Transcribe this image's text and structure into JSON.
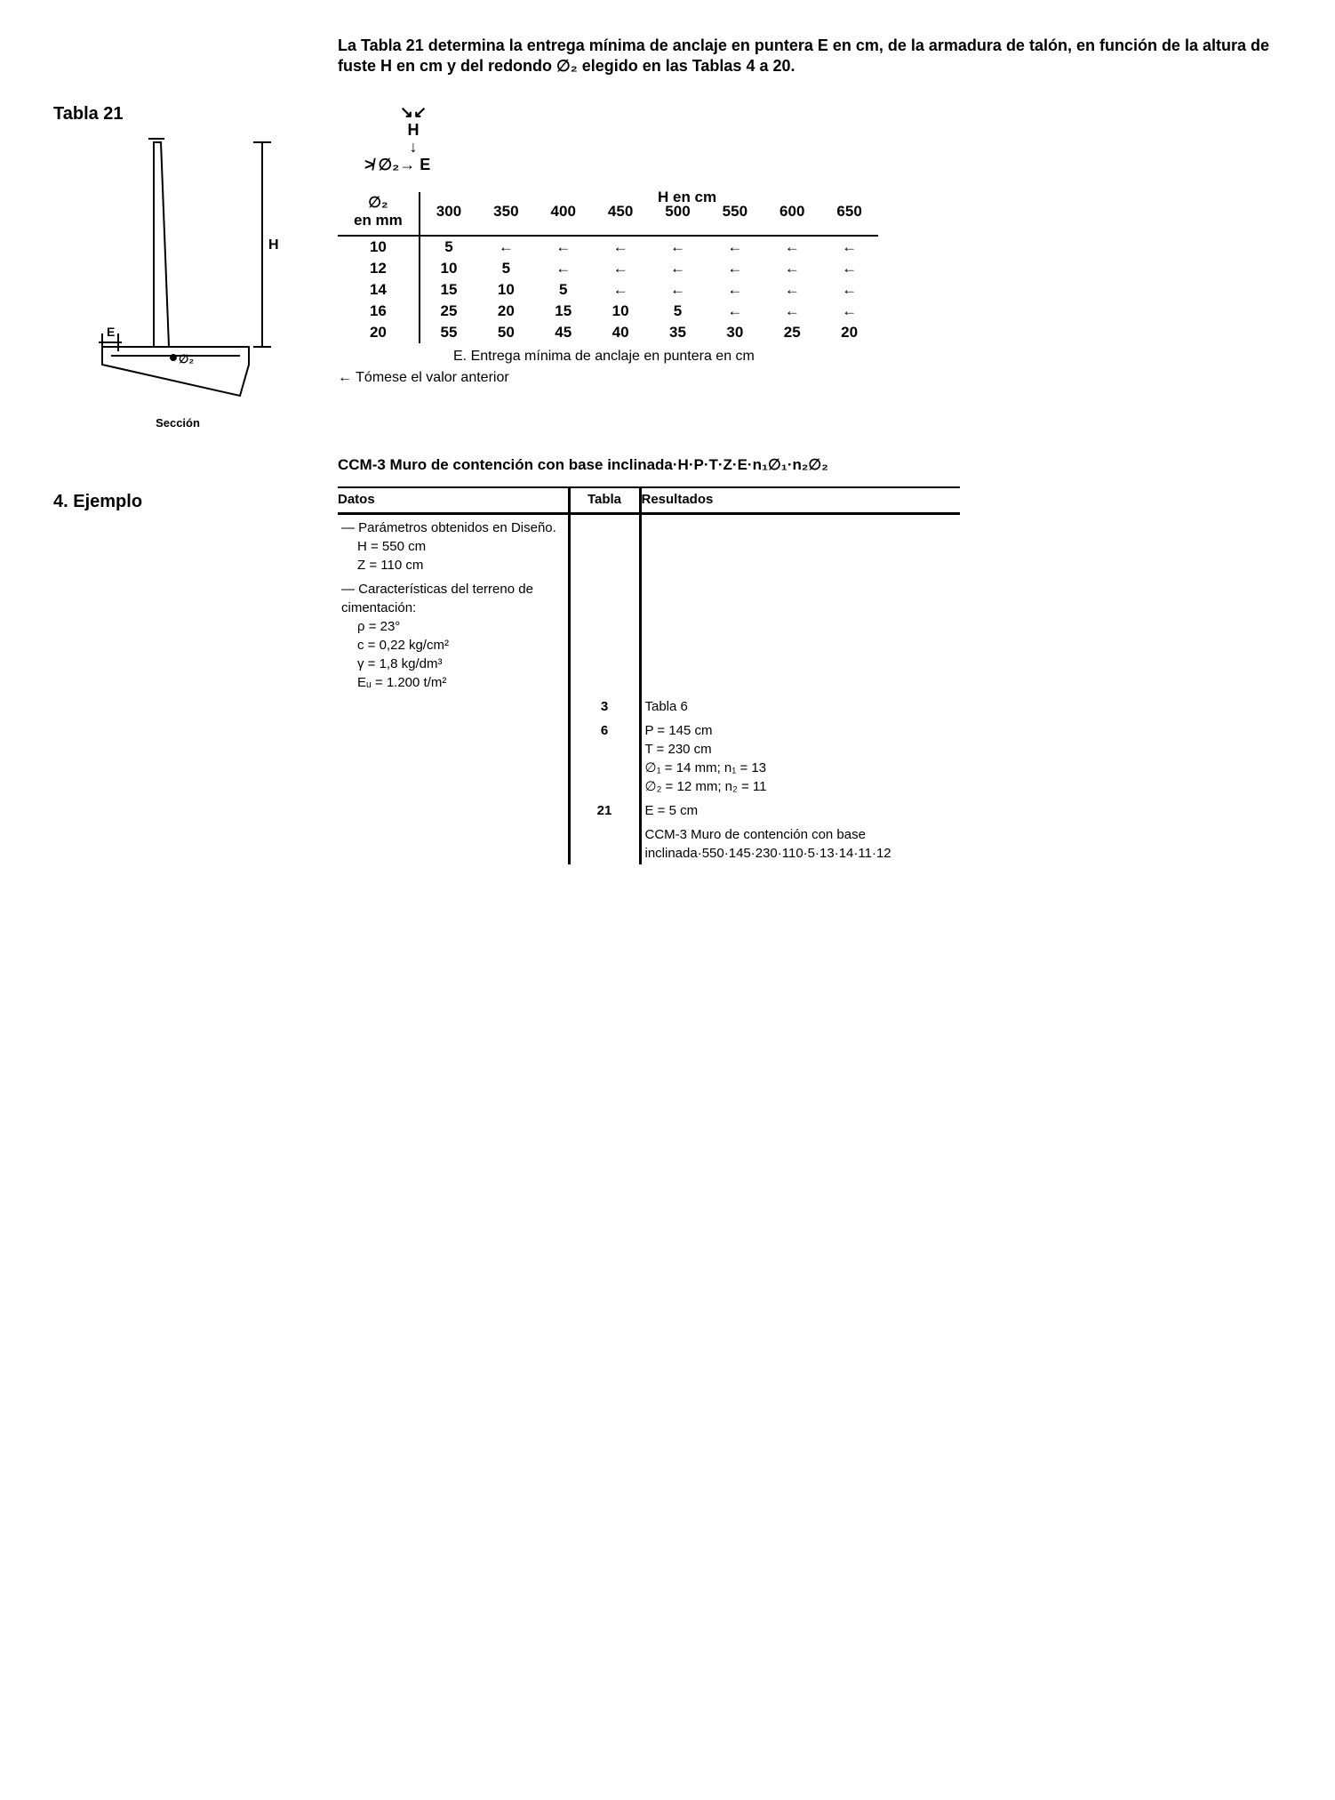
{
  "intro": "La Tabla 21 determina la entrega mínima de anclaje en puntera E en cm, de la armadura de talón, en función de la altura de fuste H en cm y del redondo ∅₂ elegido en las Tablas 4 a 20.",
  "tabla21_label": "Tabla 21",
  "seccion_label": "Sección",
  "h_diagram": {
    "l1": "↘↙",
    "l2": "H",
    "l3": "↓",
    "l4": "≯ ∅₂→ E"
  },
  "table21": {
    "super_header": "H en cm",
    "corner_top": "∅₂",
    "corner_bottom": "en mm",
    "cols": [
      "300",
      "350",
      "400",
      "450",
      "500",
      "550",
      "600",
      "650"
    ],
    "rows": [
      {
        "d": "10",
        "v": [
          "5",
          "←",
          "←",
          "←",
          "←",
          "←",
          "←",
          "←"
        ]
      },
      {
        "d": "12",
        "v": [
          "10",
          "5",
          "←",
          "←",
          "←",
          "←",
          "←",
          "←"
        ]
      },
      {
        "d": "14",
        "v": [
          "15",
          "10",
          "5",
          "←",
          "←",
          "←",
          "←",
          "←"
        ]
      },
      {
        "d": "16",
        "v": [
          "25",
          "20",
          "15",
          "10",
          "5",
          "←",
          "←",
          "←"
        ]
      },
      {
        "d": "20",
        "v": [
          "55",
          "50",
          "45",
          "40",
          "35",
          "30",
          "25",
          "20"
        ]
      }
    ],
    "caption": "E. Entrega mínima de anclaje en puntera en cm",
    "tomese": "← Tómese el valor anterior"
  },
  "ejemplo_heading": "4.  Ejemplo",
  "ejemplo_title": "CCM-3 Muro de contención con base inclinada·H·P·T·Z·E·n₁∅₁·n₂∅₂",
  "ejemplo_table": {
    "h_datos": "Datos",
    "h_tabla": "Tabla",
    "h_result": "Resultados",
    "datos_block1_title": "Parámetros obtenidos en Diseño.",
    "datos_block1_l1": "H = 550 cm",
    "datos_block1_l2": "Z = 110 cm",
    "datos_block2_title": "Características del terreno de cimentación:",
    "datos_block2_l1": "ρ = 23°",
    "datos_block2_l2": "c = 0,22 kg/cm²",
    "datos_block2_l3": "γ = 1,8 kg/dm³",
    "datos_block2_l4": "Eᵤ = 1.200 t/m²",
    "row3_tabla": "3",
    "row3_result": "Tabla 6",
    "row6_tabla": "6",
    "row6_result_l1": "P   =  145 cm",
    "row6_result_l2": "T   =  230 cm",
    "row6_result_l3": "∅₁ =   14 mm; n₁ = 13",
    "row6_result_l4": "∅₂ =   12 mm; n₂ = 11",
    "row21_tabla": "21",
    "row21_result": "E   =    5 cm",
    "final_l1": "CCM-3 Muro de contención con base",
    "final_l2": "inclinada·550·145·230·110·5·13·14·11·12"
  },
  "svg_labels": {
    "H": "H",
    "E": "E",
    "phi2": "∅₂"
  }
}
